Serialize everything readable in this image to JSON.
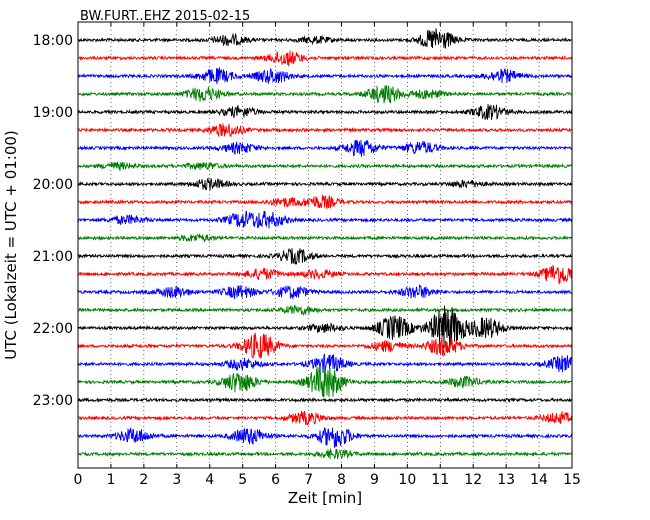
{
  "chart_data": {
    "type": "line",
    "title": "BW.FURT..EHZ 2015-02-15",
    "xlabel": "Zeit  [min]",
    "ylabel": "UTC (Lokalzeit = UTC + 01:00)",
    "xlim": [
      0,
      15
    ],
    "x_ticks": [
      "0",
      "1",
      "2",
      "3",
      "4",
      "5",
      "6",
      "7",
      "8",
      "9",
      "10",
      "11",
      "12",
      "13",
      "14",
      "15"
    ],
    "y_ticks": [
      "18:00",
      "19:00",
      "20:00",
      "21:00",
      "22:00",
      "23:00"
    ],
    "grid": true,
    "series_colors": [
      "#000000",
      "#ff0000",
      "#0000ff",
      "#007f00"
    ],
    "traces": [
      {
        "start": "18:00",
        "color": "#000000",
        "events": [
          {
            "t": 4.6,
            "a": 5
          },
          {
            "t": 7.2,
            "a": 3
          },
          {
            "t": 10.9,
            "a": 11
          }
        ]
      },
      {
        "start": "18:15",
        "color": "#ff0000",
        "events": [
          {
            "t": 6.3,
            "a": 7
          }
        ]
      },
      {
        "start": "18:30",
        "color": "#0000ff",
        "events": [
          {
            "t": 4.2,
            "a": 7
          },
          {
            "t": 5.9,
            "a": 7
          },
          {
            "t": 12.9,
            "a": 6
          }
        ]
      },
      {
        "start": "18:45",
        "color": "#007f00",
        "events": [
          {
            "t": 3.8,
            "a": 7
          },
          {
            "t": 9.3,
            "a": 9
          },
          {
            "t": 10.6,
            "a": 4
          }
        ]
      },
      {
        "start": "19:00",
        "color": "#000000",
        "events": [
          {
            "t": 4.9,
            "a": 5
          },
          {
            "t": 12.5,
            "a": 7
          }
        ]
      },
      {
        "start": "19:15",
        "color": "#ff0000",
        "events": [
          {
            "t": 4.5,
            "a": 6
          }
        ]
      },
      {
        "start": "19:30",
        "color": "#0000ff",
        "events": [
          {
            "t": 4.9,
            "a": 5
          },
          {
            "t": 8.6,
            "a": 8
          },
          {
            "t": 10.4,
            "a": 6
          }
        ]
      },
      {
        "start": "19:45",
        "color": "#007f00",
        "events": [
          {
            "t": 1.2,
            "a": 3
          },
          {
            "t": 3.8,
            "a": 3
          }
        ]
      },
      {
        "start": "20:00",
        "color": "#000000",
        "events": [
          {
            "t": 4.0,
            "a": 5
          },
          {
            "t": 11.8,
            "a": 3
          }
        ]
      },
      {
        "start": "20:15",
        "color": "#ff0000",
        "events": [
          {
            "t": 6.3,
            "a": 4
          },
          {
            "t": 7.4,
            "a": 6
          }
        ]
      },
      {
        "start": "20:30",
        "color": "#0000ff",
        "events": [
          {
            "t": 1.5,
            "a": 4
          },
          {
            "t": 5.0,
            "a": 7
          },
          {
            "t": 5.8,
            "a": 7
          }
        ]
      },
      {
        "start": "20:45",
        "color": "#007f00",
        "events": [
          {
            "t": 3.6,
            "a": 3
          }
        ]
      },
      {
        "start": "21:00",
        "color": "#000000",
        "events": [
          {
            "t": 6.6,
            "a": 7
          }
        ]
      },
      {
        "start": "21:15",
        "color": "#ff0000",
        "events": [
          {
            "t": 5.6,
            "a": 5
          },
          {
            "t": 7.3,
            "a": 4
          },
          {
            "t": 14.6,
            "a": 10
          }
        ]
      },
      {
        "start": "21:30",
        "color": "#0000ff",
        "events": [
          {
            "t": 2.9,
            "a": 5
          },
          {
            "t": 4.9,
            "a": 6
          },
          {
            "t": 6.5,
            "a": 6
          },
          {
            "t": 10.3,
            "a": 6
          }
        ]
      },
      {
        "start": "21:45",
        "color": "#007f00",
        "events": [
          {
            "t": 6.7,
            "a": 4
          }
        ]
      },
      {
        "start": "22:00",
        "color": "#000000",
        "events": [
          {
            "t": 7.5,
            "a": 4
          },
          {
            "t": 9.6,
            "a": 12
          },
          {
            "t": 11.2,
            "a": 22
          },
          {
            "t": 12.4,
            "a": 10
          }
        ]
      },
      {
        "start": "22:15",
        "color": "#ff0000",
        "events": [
          {
            "t": 5.5,
            "a": 13
          },
          {
            "t": 9.4,
            "a": 5
          },
          {
            "t": 11.1,
            "a": 9
          }
        ]
      },
      {
        "start": "22:30",
        "color": "#0000ff",
        "events": [
          {
            "t": 5.0,
            "a": 5
          },
          {
            "t": 7.6,
            "a": 9
          },
          {
            "t": 14.8,
            "a": 8
          }
        ]
      },
      {
        "start": "22:45",
        "color": "#007f00",
        "events": [
          {
            "t": 4.9,
            "a": 10
          },
          {
            "t": 7.5,
            "a": 17
          },
          {
            "t": 11.7,
            "a": 5
          }
        ]
      },
      {
        "start": "23:00",
        "color": "#000000",
        "events": []
      },
      {
        "start": "23:15",
        "color": "#ff0000",
        "events": [
          {
            "t": 6.9,
            "a": 6
          },
          {
            "t": 14.6,
            "a": 5
          }
        ]
      },
      {
        "start": "23:30",
        "color": "#0000ff",
        "events": [
          {
            "t": 1.7,
            "a": 7
          },
          {
            "t": 5.2,
            "a": 8
          },
          {
            "t": 7.8,
            "a": 11
          }
        ]
      },
      {
        "start": "23:45",
        "color": "#007f00",
        "events": [
          {
            "t": 7.8,
            "a": 4
          }
        ]
      }
    ]
  }
}
